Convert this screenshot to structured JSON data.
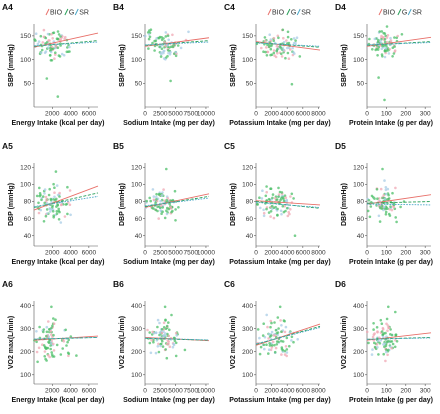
{
  "colors": {
    "BIO": "#e8706a",
    "G": "#2aa05a",
    "SR": "#4ca8c8",
    "point_green": "#4cbf68",
    "point_pink": "#f0a8b4",
    "point_blue": "#a8cce6"
  },
  "chart_data": [
    {
      "panel": "A4",
      "type": "scatter",
      "xlabel": "Energy Intake (kcal per day)",
      "ylabel": "SBP (mmHg)",
      "xticks": [
        2000,
        4000,
        6000
      ],
      "xlim": [
        0,
        7000
      ],
      "yticks": [
        50,
        100,
        150
      ],
      "ylim": [
        0,
        175
      ],
      "legend": {
        "items": [
          "BIO",
          "G",
          "SR"
        ],
        "placement": "top"
      },
      "cloud": {
        "x_center": 2000,
        "x_spread": 900,
        "y_center": 132,
        "y_spread": 15,
        "n": 90,
        "outliers": [
          [
            2600,
            22
          ],
          [
            1400,
            60
          ]
        ]
      },
      "series": [
        {
          "name": "BIO",
          "x": [
            0,
            7000
          ],
          "y": [
            126,
            156
          ]
        },
        {
          "name": "G",
          "x": [
            0,
            7000
          ],
          "y": [
            128,
            140
          ]
        },
        {
          "name": "SR",
          "x": [
            0,
            7000
          ],
          "y": [
            129,
            137
          ]
        }
      ]
    },
    {
      "panel": "B4",
      "type": "scatter",
      "xlabel": "Sodium Intake (mg per day)",
      "ylabel": "SBP (mmHg)",
      "xticks": [
        0,
        2500,
        5000,
        7500,
        10000
      ],
      "xlim": [
        0,
        10500
      ],
      "yticks": [
        50,
        100,
        150
      ],
      "ylim": [
        0,
        175
      ],
      "cloud": {
        "x_center": 3000,
        "x_spread": 1400,
        "y_center": 132,
        "y_spread": 15,
        "n": 90,
        "outliers": [
          [
            4200,
            55
          ]
        ]
      },
      "series": [
        {
          "name": "BIO",
          "x": [
            0,
            10500
          ],
          "y": [
            128,
            146
          ]
        },
        {
          "name": "G",
          "x": [
            0,
            10500
          ],
          "y": [
            130,
            140
          ]
        },
        {
          "name": "SR",
          "x": [
            0,
            10500
          ],
          "y": [
            131,
            137
          ]
        }
      ]
    },
    {
      "panel": "C4",
      "type": "scatter",
      "xlabel": "Potassium Intake (mg per day)",
      "ylabel": "SBP (mmHg)",
      "xticks": [
        0,
        2000,
        4000,
        6000,
        8000
      ],
      "xlim": [
        0,
        8200
      ],
      "yticks": [
        50,
        100,
        150
      ],
      "ylim": [
        0,
        175
      ],
      "legend": {
        "items": [
          "BIO",
          "G",
          "SR"
        ],
        "placement": "top"
      },
      "cloud": {
        "x_center": 2700,
        "x_spread": 1200,
        "y_center": 131,
        "y_spread": 15,
        "n": 90,
        "outliers": [
          [
            4600,
            48
          ]
        ]
      },
      "series": [
        {
          "name": "BIO",
          "x": [
            0,
            8200
          ],
          "y": [
            138,
            120
          ]
        },
        {
          "name": "G",
          "x": [
            0,
            8200
          ],
          "y": [
            136,
            126
          ]
        },
        {
          "name": "SR",
          "x": [
            0,
            8200
          ],
          "y": [
            135,
            128
          ]
        }
      ]
    },
    {
      "panel": "D4",
      "type": "scatter",
      "xlabel": "Protein Intake (g per day)",
      "ylabel": "SBP (mmHg)",
      "xticks": [
        0,
        100,
        200,
        300
      ],
      "xlim": [
        0,
        330
      ],
      "yticks": [
        50,
        100,
        150
      ],
      "ylim": [
        0,
        175
      ],
      "legend": {
        "items": [
          "BIO",
          "G",
          "SR"
        ],
        "placement": "top"
      },
      "cloud": {
        "x_center": 85,
        "x_spread": 38,
        "y_center": 132,
        "y_spread": 15,
        "n": 90,
        "outliers": [
          [
            90,
            15
          ],
          [
            60,
            62
          ]
        ]
      },
      "series": [
        {
          "name": "BIO",
          "x": [
            0,
            330
          ],
          "y": [
            128,
            147
          ]
        },
        {
          "name": "G",
          "x": [
            0,
            330
          ],
          "y": [
            130,
            138
          ]
        },
        {
          "name": "SR",
          "x": [
            0,
            330
          ],
          "y": [
            131,
            136
          ]
        }
      ]
    },
    {
      "panel": "A5",
      "type": "scatter",
      "xlabel": "Energy Intake (kcal per day)",
      "ylabel": "DBP (mmHg)",
      "xticks": [
        2000,
        4000,
        6000
      ],
      "xlim": [
        0,
        7000
      ],
      "yticks": [
        40,
        60,
        80,
        100,
        120
      ],
      "ylim": [
        28,
        125
      ],
      "cloud": {
        "x_center": 2000,
        "x_spread": 900,
        "y_center": 78,
        "y_spread": 9,
        "n": 90,
        "outliers": [
          [
            2400,
            115
          ]
        ]
      },
      "series": [
        {
          "name": "BIO",
          "x": [
            0,
            7000
          ],
          "y": [
            70,
            98
          ]
        },
        {
          "name": "G",
          "x": [
            0,
            7000
          ],
          "y": [
            73,
            90
          ]
        },
        {
          "name": "SR",
          "x": [
            0,
            7000
          ],
          "y": [
            74,
            86
          ]
        }
      ]
    },
    {
      "panel": "B5",
      "type": "scatter",
      "xlabel": "Sodium Intake (mg per day)",
      "ylabel": "DBP (mmHg)",
      "xticks": [
        0,
        2500,
        5000,
        7500,
        10000
      ],
      "xlim": [
        0,
        10500
      ],
      "yticks": [
        40,
        60,
        80,
        100,
        120
      ],
      "ylim": [
        28,
        125
      ],
      "cloud": {
        "x_center": 3000,
        "x_spread": 1400,
        "y_center": 78,
        "y_spread": 9,
        "n": 90,
        "outliers": [
          [
            3500,
            118
          ]
        ]
      },
      "series": [
        {
          "name": "BIO",
          "x": [
            0,
            10500
          ],
          "y": [
            73,
            89
          ]
        },
        {
          "name": "G",
          "x": [
            0,
            10500
          ],
          "y": [
            74,
            86
          ]
        },
        {
          "name": "SR",
          "x": [
            0,
            10500
          ],
          "y": [
            75,
            84
          ]
        }
      ]
    },
    {
      "panel": "C5",
      "type": "scatter",
      "xlabel": "Potassium Intake (mg per day)",
      "ylabel": "DBP (mmHg)",
      "xticks": [
        0,
        2000,
        4000,
        6000,
        8000
      ],
      "xlim": [
        0,
        8200
      ],
      "yticks": [
        40,
        60,
        80,
        100,
        120
      ],
      "ylim": [
        28,
        125
      ],
      "cloud": {
        "x_center": 2700,
        "x_spread": 1200,
        "y_center": 78,
        "y_spread": 9,
        "n": 90,
        "outliers": [
          [
            5000,
            40
          ]
        ]
      },
      "series": [
        {
          "name": "BIO",
          "x": [
            0,
            8200
          ],
          "y": [
            81,
            76
          ]
        },
        {
          "name": "G",
          "x": [
            0,
            8200
          ],
          "y": [
            80,
            72
          ]
        },
        {
          "name": "SR",
          "x": [
            0,
            8200
          ],
          "y": [
            79,
            73
          ]
        }
      ]
    },
    {
      "panel": "D5",
      "type": "scatter",
      "xlabel": "Protein Intake (g per day)",
      "ylabel": "DBP (mmHg)",
      "xticks": [
        0,
        100,
        200,
        300
      ],
      "xlim": [
        0,
        330
      ],
      "yticks": [
        40,
        60,
        80,
        100,
        120
      ],
      "ylim": [
        28,
        125
      ],
      "cloud": {
        "x_center": 85,
        "x_spread": 38,
        "y_center": 78,
        "y_spread": 9,
        "n": 90,
        "outliers": [
          [
            80,
            118
          ]
        ]
      },
      "series": [
        {
          "name": "BIO",
          "x": [
            0,
            330
          ],
          "y": [
            77,
            88
          ]
        },
        {
          "name": "G",
          "x": [
            0,
            330
          ],
          "y": [
            78,
            80
          ]
        },
        {
          "name": "SR",
          "x": [
            0,
            330
          ],
          "y": [
            77,
            76
          ]
        }
      ]
    },
    {
      "panel": "A6",
      "type": "scatter",
      "xlabel": "Energy Intake (kcal per day)",
      "ylabel": "VO2 max(L/min)",
      "xticks": [
        2000,
        4000,
        6000
      ],
      "xlim": [
        0,
        7000
      ],
      "yticks": [
        100,
        200,
        300,
        400
      ],
      "ylim": [
        60,
        420
      ],
      "cloud": {
        "x_center": 2000,
        "x_spread": 900,
        "y_center": 255,
        "y_spread": 42,
        "n": 90,
        "outliers": [
          [
            1900,
            395
          ]
        ]
      },
      "series": [
        {
          "name": "BIO",
          "x": [
            0,
            7000
          ],
          "y": [
            250,
            268
          ]
        },
        {
          "name": "G",
          "x": [
            0,
            7000
          ],
          "y": [
            254,
            262
          ]
        },
        {
          "name": "SR",
          "x": [
            0,
            7000
          ],
          "y": [
            255,
            262
          ]
        }
      ]
    },
    {
      "panel": "B6",
      "type": "scatter",
      "xlabel": "Sodium Intake (mg per day)",
      "ylabel": "VO2 max(L/min)",
      "xticks": [
        0,
        2500,
        5000,
        7500,
        10000
      ],
      "xlim": [
        0,
        10500
      ],
      "yticks": [
        100,
        200,
        300,
        400
      ],
      "ylim": [
        60,
        420
      ],
      "cloud": {
        "x_center": 3000,
        "x_spread": 1400,
        "y_center": 255,
        "y_spread": 42,
        "n": 90,
        "outliers": [
          [
            3300,
            395
          ]
        ]
      },
      "series": [
        {
          "name": "BIO",
          "x": [
            0,
            10500
          ],
          "y": [
            262,
            248
          ]
        },
        {
          "name": "G",
          "x": [
            0,
            10500
          ],
          "y": [
            258,
            250
          ]
        },
        {
          "name": "SR",
          "x": [
            0,
            10500
          ],
          "y": [
            259,
            251
          ]
        }
      ]
    },
    {
      "panel": "C6",
      "type": "scatter",
      "xlabel": "Potassium Intake (mg per day)",
      "ylabel": "VO2 max(L/min)",
      "xticks": [
        0,
        2000,
        4000,
        6000,
        8000
      ],
      "xlim": [
        0,
        8200
      ],
      "yticks": [
        100,
        200,
        300,
        400
      ],
      "ylim": [
        60,
        420
      ],
      "cloud": {
        "x_center": 2700,
        "x_spread": 1200,
        "y_center": 262,
        "y_spread": 42,
        "n": 90,
        "outliers": [
          [
            3100,
            395
          ]
        ]
      },
      "series": [
        {
          "name": "BIO",
          "x": [
            0,
            8200
          ],
          "y": [
            228,
            320
          ]
        },
        {
          "name": "G",
          "x": [
            0,
            8200
          ],
          "y": [
            232,
            310
          ]
        },
        {
          "name": "SR",
          "x": [
            0,
            8200
          ],
          "y": [
            234,
            305
          ]
        }
      ]
    },
    {
      "panel": "D6",
      "type": "scatter",
      "xlabel": "Protein Intake (g per day)",
      "ylabel": "VO2 max(L/min)",
      "xticks": [
        0,
        100,
        200,
        300
      ],
      "xlim": [
        0,
        330
      ],
      "yticks": [
        100,
        200,
        300,
        400
      ],
      "ylim": [
        60,
        420
      ],
      "cloud": {
        "x_center": 85,
        "x_spread": 38,
        "y_center": 257,
        "y_spread": 42,
        "n": 90,
        "outliers": [
          [
            110,
            395
          ]
        ]
      },
      "series": [
        {
          "name": "BIO",
          "x": [
            0,
            330
          ],
          "y": [
            250,
            282
          ]
        },
        {
          "name": "G",
          "x": [
            0,
            330
          ],
          "y": [
            254,
            262
          ]
        },
        {
          "name": "SR",
          "x": [
            0,
            330
          ],
          "y": [
            254,
            260
          ]
        }
      ]
    }
  ]
}
